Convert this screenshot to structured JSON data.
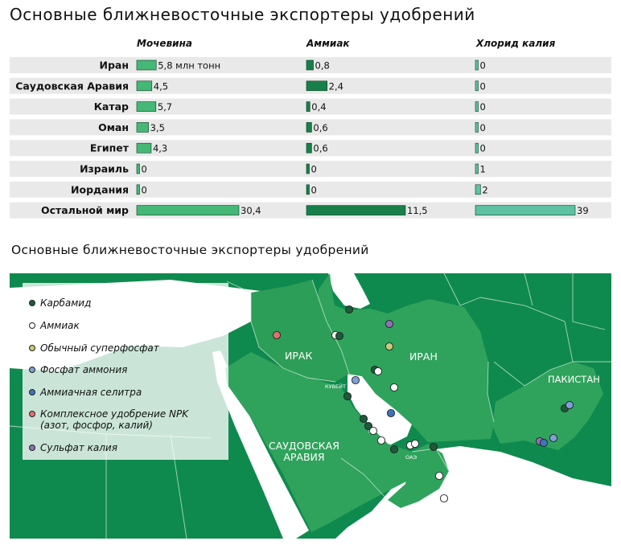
{
  "chart_data": {
    "type": "bar",
    "title": "Основные ближневосточные экспортеры удобрений",
    "categories": [
      "Иран",
      "Саудовская Аравия",
      "Катар",
      "Оман",
      "Египет",
      "Израиль",
      "Иордания",
      "Остальной мир"
    ],
    "series": [
      {
        "name": "Мочевина",
        "values": [
          5.8,
          4.5,
          5.7,
          3.5,
          4.3,
          0,
          0,
          30.4
        ],
        "labels": [
          "5,8 млн тонн",
          "4,5",
          "5,7",
          "3,5",
          "4,3",
          "0",
          "0",
          "30,4"
        ]
      },
      {
        "name": "Аммиак",
        "values": [
          0.8,
          2.4,
          0.4,
          0.6,
          0.6,
          0,
          0,
          11.5
        ],
        "labels": [
          "0,8",
          "2,4",
          "0,4",
          "0,6",
          "0,6",
          "0",
          "0",
          "11,5"
        ]
      },
      {
        "name": "Хлорид калия",
        "values": [
          0,
          0,
          0,
          0,
          0,
          1,
          2,
          39
        ],
        "labels": [
          "0",
          "0",
          "0",
          "0",
          "0",
          "1",
          "2",
          "39"
        ]
      }
    ],
    "colors": [
      "#45b876",
      "#17804a",
      "#5cc2a2"
    ]
  },
  "map": {
    "title": "Основные ближневосточные экспортеры удобрений",
    "legend": [
      {
        "label": "Карбамид",
        "color": "#1d5a3a"
      },
      {
        "label": "Аммиак",
        "color": "#ffffff"
      },
      {
        "label": "Обычный суперфосфат",
        "color": "#c9c97a"
      },
      {
        "label": "Фосфат аммония",
        "color": "#7f9fd8"
      },
      {
        "label": "Аммиачная селитра",
        "color": "#3f74b8"
      },
      {
        "label": "Комплексное удобрение NPK\n(азот, фосфор, калий)",
        "color": "#e07070"
      },
      {
        "label": "Сульфат калия",
        "color": "#8e6fb8"
      }
    ],
    "countries": {
      "iraq": "ИРАК",
      "iran": "ИРАН",
      "saudi": "САУДОВСКАЯ\nАРАВИЯ",
      "pakistan": "ПАКИСТАН",
      "kuwait": "КУВЕЙТ",
      "qatar": "КАТАР",
      "uae": "ОАЭ"
    }
  }
}
